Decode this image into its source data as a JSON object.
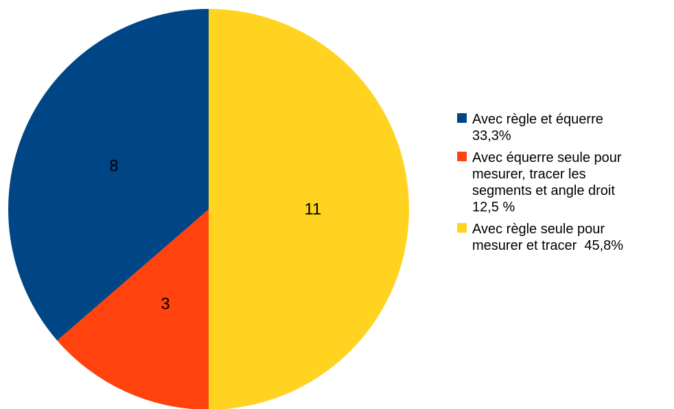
{
  "chart_data": {
    "type": "pie",
    "title": "",
    "slices": [
      {
        "value": 8,
        "label": "8",
        "color": "#004586",
        "legend_lines": [
          "Avec règle et équerre",
          "33,3%"
        ]
      },
      {
        "value": 3,
        "label": "3",
        "color": "#ff420e",
        "legend_lines": [
          "Avec équerre seule pour",
          "mesurer, tracer les",
          "segments et angle droit",
          "12,5 %"
        ]
      },
      {
        "value": 11,
        "label": "11",
        "color": "#ffd320",
        "legend_lines": [
          "Avec règle seule pour",
          "mesurer et tracer  45,8%"
        ]
      }
    ],
    "legend_position": "right",
    "start_angle_deg": 0,
    "direction": "counterclockwise"
  }
}
